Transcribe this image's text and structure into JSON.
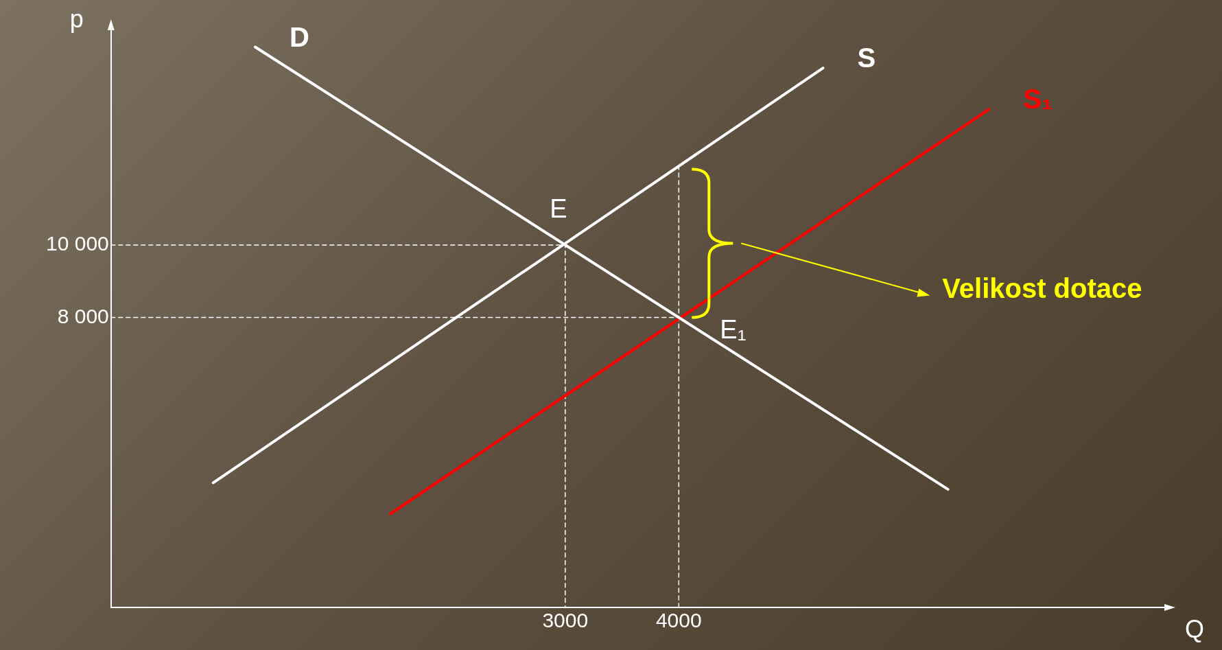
{
  "chart_data": {
    "type": "line",
    "xlabel": "Q",
    "ylabel": "p",
    "xlim": [
      -1000,
      8300
    ],
    "ylim": [
      0,
      16000
    ],
    "xticks": [
      3000,
      4000
    ],
    "yticks": [
      {
        "value": 8000,
        "label": "8 000"
      },
      {
        "value": 10000,
        "label": "10 000"
      }
    ],
    "marker": "none",
    "legend": false,
    "series": [
      {
        "name": "D",
        "color": "#ffffff",
        "x": [
          270,
          6370
        ],
        "values": [
          15460,
          3260
        ],
        "line_style": "solid"
      },
      {
        "name": "S",
        "color": "#ffffff",
        "x": [
          -100,
          5270
        ],
        "values": [
          3440,
          14880
        ],
        "line_style": "solid"
      },
      {
        "name": "S₁",
        "color": "#ff0000",
        "x": [
          1460,
          6730
        ],
        "values": [
          2580,
          13740
        ],
        "line_style": "solid"
      },
      {
        "color": "#ffffff",
        "x": [
          -1000,
          3000,
          3000
        ],
        "values": [
          10000,
          10000,
          0
        ],
        "line_style": "dashed"
      },
      {
        "color": "#ffffff",
        "x": [
          -1000,
          4000
        ],
        "values": [
          8000,
          8000
        ],
        "line_style": "dashed"
      },
      {
        "color": "#ffffff",
        "x": [
          4000,
          4000
        ],
        "values": [
          0,
          12130
        ],
        "line_style": "dashed"
      }
    ],
    "annotations": [
      {
        "text": "E",
        "x": 3000,
        "y": 10000
      },
      {
        "text": "E₁",
        "x": 4000,
        "y": 8000
      },
      "Velikost dotace"
    ]
  }
}
